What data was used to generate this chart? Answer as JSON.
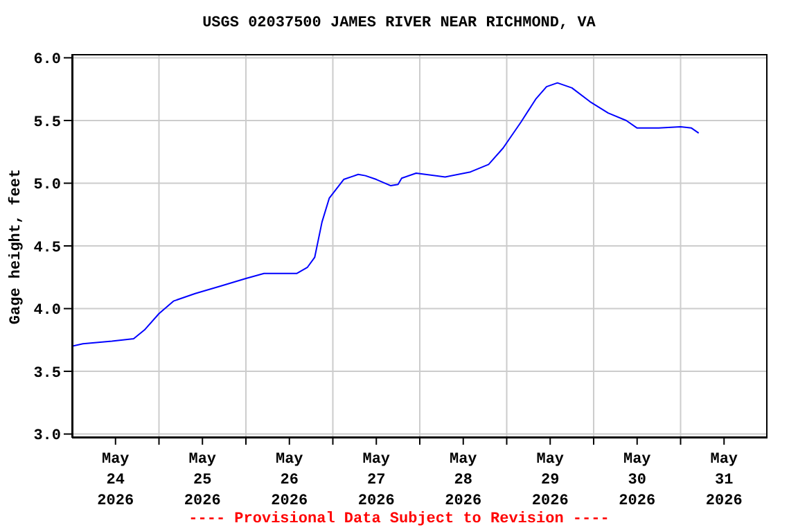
{
  "chart_data": {
    "type": "line",
    "title": "USGS 02037500 JAMES RIVER NEAR RICHMOND, VA",
    "ylabel": "Gage height, feet",
    "annotations": [
      "---- Provisional Data Subject to Revision ----"
    ],
    "x": [
      "2026-05-24T00:00",
      "2026-05-24T03:00",
      "2026-05-24T11:00",
      "2026-05-24T17:00",
      "2026-05-24T20:00",
      "2026-05-25T00:00",
      "2026-05-25T04:00",
      "2026-05-25T10:00",
      "2026-05-25T17:00",
      "2026-05-26T00:00",
      "2026-05-26T05:00",
      "2026-05-26T14:00",
      "2026-05-26T17:00",
      "2026-05-26T19:00",
      "2026-05-26T21:00",
      "2026-05-26T23:00",
      "2026-05-27T03:00",
      "2026-05-27T07:00",
      "2026-05-27T09:00",
      "2026-05-27T12:00",
      "2026-05-27T16:00",
      "2026-05-27T18:00",
      "2026-05-27T19:00",
      "2026-05-27T23:00",
      "2026-05-28T07:00",
      "2026-05-28T14:00",
      "2026-05-28T19:00",
      "2026-05-28T23:00",
      "2026-05-29T04:00",
      "2026-05-29T08:00",
      "2026-05-29T11:00",
      "2026-05-29T14:00",
      "2026-05-29T18:00",
      "2026-05-29T23:00",
      "2026-05-30T04:00",
      "2026-05-30T09:00",
      "2026-05-30T12:00",
      "2026-05-30T18:00",
      "2026-05-31T00:00",
      "2026-05-31T03:00",
      "2026-05-31T05:00"
    ],
    "series": [
      {
        "color": "#0000ff",
        "values": [
          3.7,
          3.72,
          3.74,
          3.76,
          3.83,
          3.96,
          4.06,
          4.12,
          4.18,
          4.24,
          4.28,
          4.28,
          4.33,
          4.41,
          4.69,
          4.88,
          5.03,
          5.07,
          5.06,
          5.03,
          4.98,
          4.99,
          5.04,
          5.08,
          5.05,
          5.09,
          5.15,
          5.28,
          5.49,
          5.67,
          5.77,
          5.8,
          5.76,
          5.65,
          5.56,
          5.5,
          5.44,
          5.44,
          5.45,
          5.44,
          5.4
        ]
      }
    ],
    "xlim": [
      "2026-05-24T00:00",
      "2026-06-01T00:00"
    ],
    "xticks": [
      {
        "value": "2026-05-24T12:00",
        "label": "May\n24\n2026"
      },
      {
        "value": "2026-05-25T00:00",
        "label": null
      },
      {
        "value": "2026-05-25T12:00",
        "label": "May\n25\n2026"
      },
      {
        "value": "2026-05-26T00:00",
        "label": null
      },
      {
        "value": "2026-05-26T12:00",
        "label": "May\n26\n2026"
      },
      {
        "value": "2026-05-27T00:00",
        "label": null
      },
      {
        "value": "2026-05-27T12:00",
        "label": "May\n27\n2026"
      },
      {
        "value": "2026-05-28T00:00",
        "label": null
      },
      {
        "value": "2026-05-28T12:00",
        "label": "May\n28\n2026"
      },
      {
        "value": "2026-05-29T00:00",
        "label": null
      },
      {
        "value": "2026-05-29T12:00",
        "label": "May\n29\n2026"
      },
      {
        "value": "2026-05-30T00:00",
        "label": null
      },
      {
        "value": "2026-05-30T12:00",
        "label": "May\n30\n2026"
      },
      {
        "value": "2026-05-31T00:00",
        "label": null
      },
      {
        "value": "2026-05-31T12:00",
        "label": "May\n31\n2026"
      }
    ],
    "ylim": [
      2.97,
      6.03
    ],
    "yticks": [
      {
        "value": 3,
        "label": "3.0"
      },
      {
        "value": 3.5,
        "label": "3.5"
      },
      {
        "value": 4,
        "label": "4.0"
      },
      {
        "value": 4.5,
        "label": "4.5"
      },
      {
        "value": 5,
        "label": "5.0"
      },
      {
        "value": 5.5,
        "label": "5.5"
      },
      {
        "value": 6,
        "label": "6.0"
      }
    ],
    "grid": true,
    "legend": false,
    "marker": "none",
    "line_style": "solid"
  }
}
